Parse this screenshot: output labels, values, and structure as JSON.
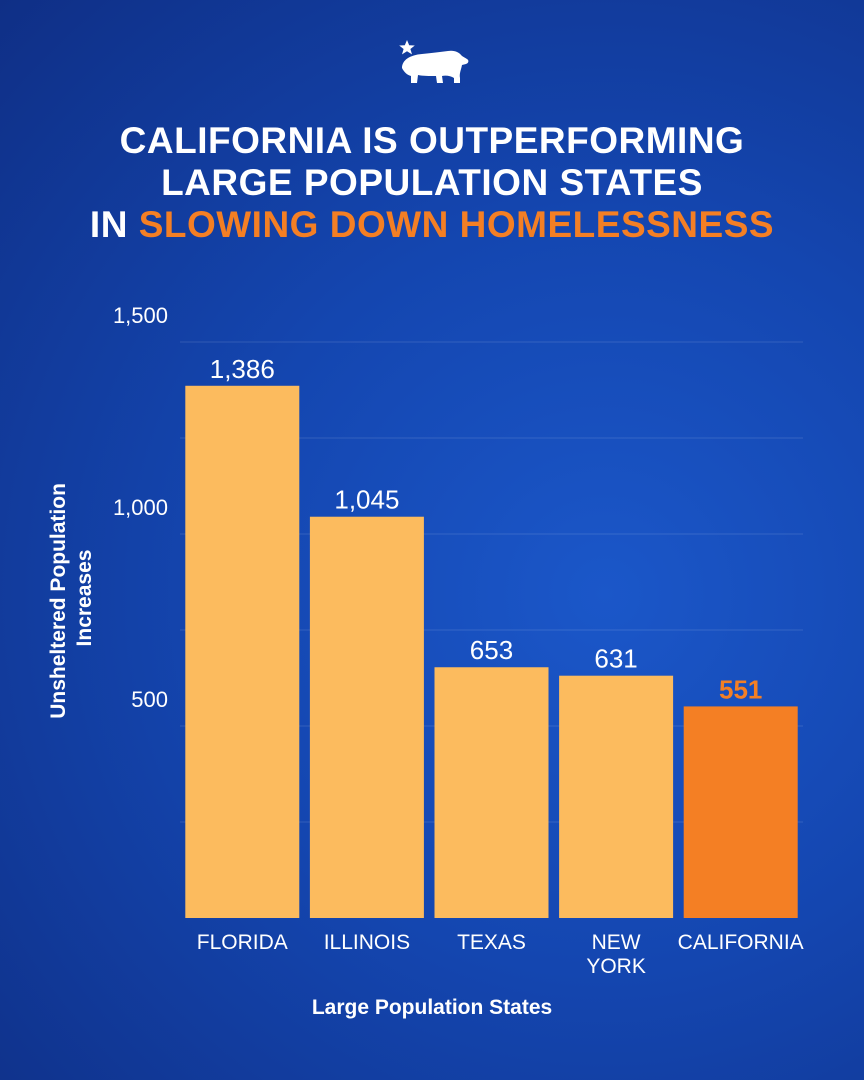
{
  "header": {
    "logo_icon": "california-bear-star-icon",
    "title_line1": "CALIFORNIA IS OUTPERFORMING",
    "title_line2": "LARGE POPULATION STATES",
    "title_line3_prefix": "IN ",
    "title_line3_accent": "SLOWING DOWN HOMELESSNESS"
  },
  "colors": {
    "bar": "#fcbb5e",
    "highlight_bar": "#f47f24",
    "text": "#ffffff",
    "accent": "#f47f24"
  },
  "chart_data": {
    "type": "bar",
    "title": "",
    "categories": [
      "FLORIDA",
      "ILLINOIS",
      "TEXAS",
      "NEW YORK",
      "CALIFORNIA"
    ],
    "category_lines": [
      [
        "FLORIDA"
      ],
      [
        "ILLINOIS"
      ],
      [
        "TEXAS"
      ],
      [
        "NEW",
        "YORK"
      ],
      [
        "CALIFORNIA"
      ]
    ],
    "values": [
      1386,
      1045,
      653,
      631,
      551
    ],
    "value_labels": [
      "1,386",
      "1,045",
      "653",
      "631",
      "551"
    ],
    "highlight_index": 4,
    "xlabel": "Large Population States",
    "ylabel_lines": [
      "Unsheltered Population",
      "Increases"
    ],
    "ylim": [
      0,
      1500
    ],
    "yticks": [
      500,
      1000,
      1500
    ],
    "ytick_labels": [
      "500",
      "1,000",
      "1,500"
    ],
    "grid": true
  }
}
